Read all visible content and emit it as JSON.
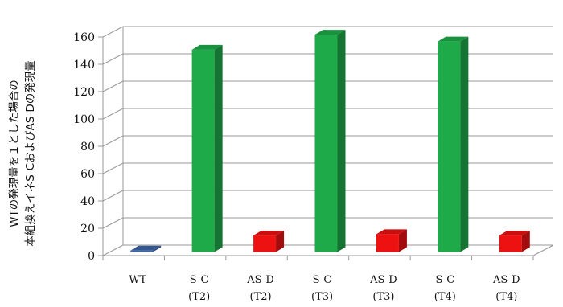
{
  "chart_data": {
    "type": "bar",
    "three_d": true,
    "ylabel_lines": [
      "WTの発現量を１とした場合の",
      "本組換えイネS-CおよびAS-Dの発現量"
    ],
    "categories": [
      {
        "line1": "WT",
        "line2": ""
      },
      {
        "line1": "S-C",
        "line2": "(T2)"
      },
      {
        "line1": "AS-D",
        "line2": "(T2)"
      },
      {
        "line1": "S-C",
        "line2": "(T3)"
      },
      {
        "line1": "AS-D",
        "line2": "(T3)"
      },
      {
        "line1": "S-C",
        "line2": "(T4)"
      },
      {
        "line1": "AS-D",
        "line2": "(T4)"
      }
    ],
    "values": [
      1,
      148,
      12,
      159,
      13,
      154,
      12
    ],
    "bar_colors": [
      "#3d66a8",
      "#1faa4a",
      "#ee1111",
      "#1faa4a",
      "#ee1111",
      "#1faa4a",
      "#ee1111"
    ],
    "yticks": [
      0,
      20,
      40,
      60,
      80,
      100,
      120,
      140,
      160
    ],
    "ylim": [
      0,
      160
    ],
    "grid": true,
    "legend": "none"
  }
}
